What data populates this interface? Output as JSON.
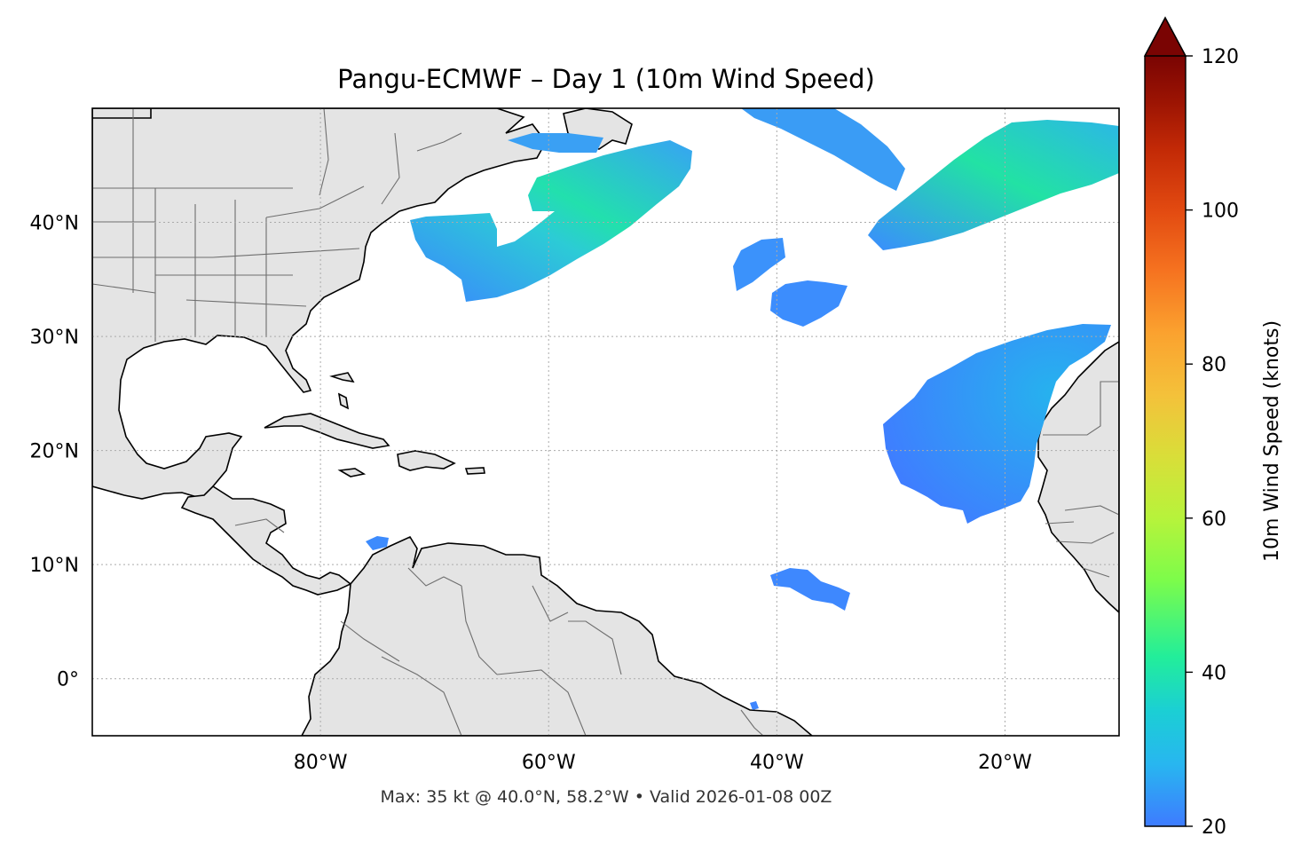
{
  "figure": {
    "title": "Pangu-ECMWF – Day 1 (10m Wind Speed)",
    "caption": "Max: 35 kt @ 40.0°N, 58.2°W • Valid 2026-01-08 00Z"
  },
  "map": {
    "lon_range": [
      -100,
      -10
    ],
    "lat_range": [
      -5,
      50
    ],
    "lon_ticks": [
      {
        "value": -80,
        "label": "80°W"
      },
      {
        "value": -60,
        "label": "60°W"
      },
      {
        "value": -40,
        "label": "40°W"
      },
      {
        "value": -20,
        "label": "20°W"
      }
    ],
    "lat_ticks": [
      {
        "value": 40,
        "label": "40°N"
      },
      {
        "value": 30,
        "label": "30°N"
      },
      {
        "value": 20,
        "label": "20°N"
      },
      {
        "value": 10,
        "label": "10°N"
      },
      {
        "value": 0,
        "label": "0°"
      }
    ],
    "gridlines": true,
    "land_color": "#e4e4e4",
    "coast_color": "#000000",
    "border_color": "#666666",
    "wind_regions": [
      {
        "name": "nw-atlantic-streak",
        "lon": -63,
        "lat": 39,
        "max_kt": 35
      },
      {
        "name": "ne-atlantic-streak",
        "lon": -25,
        "lat": 44,
        "max_kt": 33
      },
      {
        "name": "trade-wind-area",
        "lon": -25,
        "lat": 21,
        "max_kt": 28
      },
      {
        "name": "azores-patch-1",
        "lon": -38,
        "lat": 37,
        "max_kt": 22
      },
      {
        "name": "azores-patch-2",
        "lon": -34,
        "lat": 33,
        "max_kt": 22
      },
      {
        "name": "tropical-patch",
        "lon": -37,
        "lat": 8,
        "max_kt": 21
      },
      {
        "name": "caribbean-patch",
        "lon": -72,
        "lat": 12,
        "max_kt": 21
      }
    ]
  },
  "colorbar": {
    "label": "10m Wind Speed (knots)",
    "min": 20,
    "max": 120,
    "extend": "max",
    "colormap": "turbo",
    "ticks": [
      {
        "value": 20,
        "label": "20"
      },
      {
        "value": 40,
        "label": "40"
      },
      {
        "value": 60,
        "label": "60"
      },
      {
        "value": 80,
        "label": "80"
      },
      {
        "value": 100,
        "label": "100"
      },
      {
        "value": 120,
        "label": "120"
      }
    ],
    "stops": [
      "#3e7bff",
      "#28b6f0",
      "#1bcfd4",
      "#22ee9a",
      "#7dfc4a",
      "#b7f33b",
      "#d9de39",
      "#f4c13a",
      "#fba22f",
      "#f67320",
      "#e24a11",
      "#c22906",
      "#9c1403",
      "#7a0403"
    ]
  }
}
